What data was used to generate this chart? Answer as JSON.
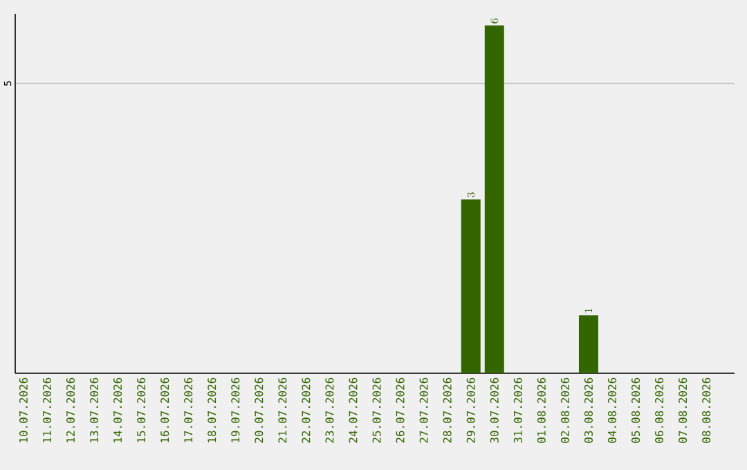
{
  "chart_data": {
    "type": "bar",
    "categories": [
      "10.07.2026",
      "11.07.2026",
      "12.07.2026",
      "13.07.2026",
      "14.07.2026",
      "15.07.2026",
      "16.07.2026",
      "17.07.2026",
      "18.07.2026",
      "19.07.2026",
      "20.07.2026",
      "21.07.2026",
      "22.07.2026",
      "23.07.2026",
      "24.07.2026",
      "25.07.2026",
      "26.07.2026",
      "27.07.2026",
      "28.07.2026",
      "29.07.2026",
      "30.07.2026",
      "31.07.2026",
      "01.08.2026",
      "02.08.2026",
      "03.08.2026",
      "04.08.2026",
      "05.08.2026",
      "06.08.2026",
      "07.08.2026",
      "08.08.2026"
    ],
    "values": [
      null,
      null,
      null,
      null,
      null,
      null,
      null,
      null,
      null,
      null,
      null,
      null,
      null,
      null,
      null,
      null,
      null,
      null,
      null,
      3,
      6,
      null,
      null,
      null,
      1,
      null,
      null,
      null,
      null,
      null
    ],
    "color": "#336600",
    "ylim": [
      0,
      6.2
    ],
    "yticks": [
      5
    ],
    "grid": "y",
    "data_labels": true
  }
}
